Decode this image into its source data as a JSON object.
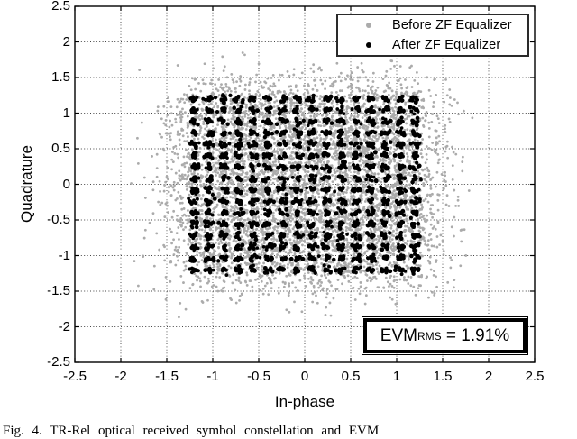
{
  "chart_data": {
    "type": "scatter",
    "title": "",
    "xlabel": "In-phase",
    "ylabel": "Quadrature",
    "xlim": [
      -2.5,
      2.5
    ],
    "ylim": [
      -2.5,
      2.5
    ],
    "xticks": [
      "-2.5",
      "-2",
      "-1.5",
      "-1",
      "-0.5",
      "0",
      "0.5",
      "1",
      "1.5",
      "2",
      "2.5"
    ],
    "yticks": [
      "2.5",
      "2",
      "1.5",
      "1",
      "0.5",
      "0",
      "-0.5",
      "-1",
      "-1.5",
      "-2",
      "-2.5"
    ],
    "grid": "dotted",
    "grid_color": "#444444",
    "legend": {
      "position": "top-right",
      "entries": [
        {
          "label": "Before ZF Equalizer",
          "color": "#ABABAB",
          "marker": "dot"
        },
        {
          "label": "After ZF Equalizer",
          "color": "#000000",
          "marker": "dot"
        }
      ]
    },
    "constellation": {
      "modulation": "256-QAM",
      "levels": [
        -1.2,
        -1.04,
        -0.88,
        -0.72,
        -0.56,
        -0.4,
        -0.24,
        -0.08,
        0.08,
        0.24,
        0.4,
        0.56,
        0.72,
        0.88,
        1.04,
        1.2
      ]
    },
    "series": [
      {
        "name": "Before ZF Equalizer",
        "color": "#ABABAB",
        "marker_radius_px": 1.4,
        "points_per_symbol": 22,
        "jitter_sigma": 0.25
      },
      {
        "name": "After ZF Equalizer",
        "color": "#000000",
        "marker_radius_px": 2.1,
        "points_per_symbol": 9,
        "jitter_sigma": 0.024
      }
    ],
    "annotation": {
      "prefix": "EVM",
      "subscript": "RMS",
      "rest": " = 1.91%"
    }
  },
  "figure_caption": "Fig. 4.   TR-Rel optical received symbol constellation and EVM"
}
